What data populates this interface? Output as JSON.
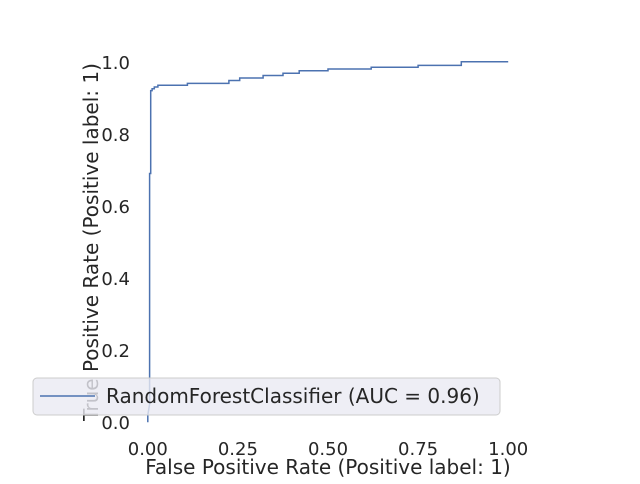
{
  "chart_data": {
    "type": "line",
    "title": "",
    "xlabel": "False Positive Rate (Positive label: 1)",
    "ylabel": "True Positive Rate (Positive label: 1)",
    "xlim": [
      -0.005,
      1.005
    ],
    "ylim": [
      -0.005,
      1.005
    ],
    "grid": false,
    "legend_position": "lower-right",
    "xticks": [
      0.0,
      0.25,
      0.5,
      0.75,
      1.0
    ],
    "xtick_labels": [
      "0.00",
      "0.25",
      "0.50",
      "0.75",
      "1.00"
    ],
    "yticks": [
      0.0,
      0.2,
      0.4,
      0.6,
      0.8,
      1.0
    ],
    "ytick_labels": [
      "0.0",
      "0.2",
      "0.4",
      "0.6",
      "0.8",
      "1.0"
    ],
    "series": [
      {
        "name": "RandomForestClassifier (AUC = 0.96)",
        "color": "#4c72b0",
        "x": [
          0.0,
          0.0,
          0.005,
          0.005,
          0.008,
          0.008,
          0.012,
          0.012,
          0.018,
          0.018,
          0.028,
          0.028,
          0.11,
          0.11,
          0.225,
          0.225,
          0.255,
          0.255,
          0.32,
          0.32,
          0.375,
          0.375,
          0.42,
          0.42,
          0.5,
          0.5,
          0.62,
          0.62,
          0.75,
          0.75,
          0.87,
          0.87,
          1.0
        ],
        "y": [
          0.0,
          0.02,
          0.05,
          0.69,
          0.69,
          0.92,
          0.92,
          0.925,
          0.925,
          0.93,
          0.93,
          0.935,
          0.935,
          0.94,
          0.94,
          0.948,
          0.948,
          0.955,
          0.955,
          0.962,
          0.962,
          0.968,
          0.968,
          0.975,
          0.975,
          0.98,
          0.98,
          0.985,
          0.985,
          0.99,
          0.99,
          1.0,
          1.0
        ]
      }
    ]
  }
}
